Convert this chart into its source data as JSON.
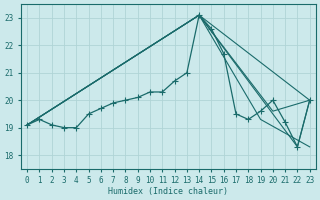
{
  "xlabel": "Humidex (Indice chaleur)",
  "background_color": "#cce9eb",
  "grid_color": "#b0d4d6",
  "line_color": "#1a6b6b",
  "xlim": [
    -0.5,
    23.5
  ],
  "ylim": [
    17.5,
    23.5
  ],
  "yticks": [
    18,
    19,
    20,
    21,
    22,
    23
  ],
  "xticks": [
    0,
    1,
    2,
    3,
    4,
    5,
    6,
    7,
    8,
    9,
    10,
    11,
    12,
    13,
    14,
    15,
    16,
    17,
    18,
    19,
    20,
    21,
    22,
    23
  ],
  "main_line": {
    "x": [
      0,
      1,
      2,
      3,
      4,
      5,
      6,
      7,
      8,
      9,
      10,
      11,
      12,
      13,
      14,
      15,
      16,
      17,
      18,
      19,
      20,
      21,
      22,
      23
    ],
    "y": [
      19.1,
      19.3,
      19.1,
      19.0,
      19.0,
      19.5,
      19.7,
      19.9,
      20.0,
      20.1,
      20.3,
      20.3,
      20.7,
      21.0,
      23.1,
      22.6,
      21.7,
      19.5,
      19.3,
      19.6,
      20.0,
      19.2,
      18.3,
      20.0
    ]
  },
  "straight_lines": [
    {
      "x": [
        0,
        14,
        23
      ],
      "y": [
        19.1,
        23.1,
        20.0
      ]
    },
    {
      "x": [
        0,
        14,
        20,
        23
      ],
      "y": [
        19.1,
        23.1,
        19.6,
        20.0
      ]
    },
    {
      "x": [
        0,
        14,
        19,
        23
      ],
      "y": [
        19.1,
        23.1,
        19.3,
        18.3
      ]
    },
    {
      "x": [
        0,
        14,
        22,
        23
      ],
      "y": [
        19.1,
        23.1,
        18.3,
        20.0
      ]
    }
  ]
}
